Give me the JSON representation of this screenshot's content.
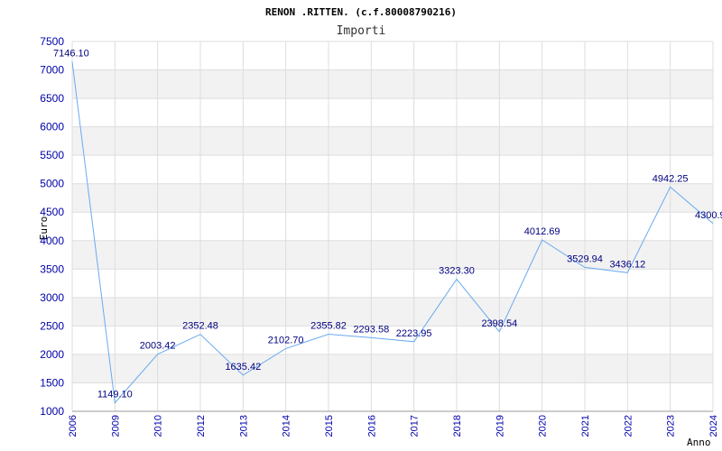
{
  "chart_data": {
    "type": "line",
    "title": "RENON .RITTEN. (c.f.80008790216)",
    "subtitle": "Importi",
    "ylabel": "Euro",
    "xlabel": "Anno",
    "ylim": [
      1000,
      7500
    ],
    "yticks": [
      1000,
      1500,
      2000,
      2500,
      3000,
      3500,
      4000,
      4500,
      5000,
      5500,
      6000,
      6500,
      7000,
      7500
    ],
    "categories": [
      "2006",
      "2009",
      "2010",
      "2012",
      "2013",
      "2014",
      "2015",
      "2016",
      "2017",
      "2018",
      "2019",
      "2020",
      "2021",
      "2022",
      "2023",
      "2024"
    ],
    "values": [
      7146.1,
      1149.1,
      2003.42,
      2352.48,
      1635.42,
      2102.7,
      2355.82,
      2293.58,
      2223.95,
      3323.3,
      2398.54,
      4012.69,
      3529.94,
      3436.12,
      4942.25,
      4300.9
    ],
    "labels": [
      "7146.10",
      "1149.10",
      "2003.42",
      "2352.48",
      "1635.42",
      "2102.70",
      "2355.82",
      "2293.58",
      "2223.95",
      "3323.30",
      "2398.54",
      "4012.69",
      "3529.94",
      "3436.12",
      "4942.25",
      "4300.9"
    ],
    "grid": true,
    "colors": {
      "line": "#6aaaf0",
      "band": "#f2f2f2",
      "grid": "#dddddd",
      "tick_text": "#0000aa",
      "label_text": "#000080"
    }
  }
}
